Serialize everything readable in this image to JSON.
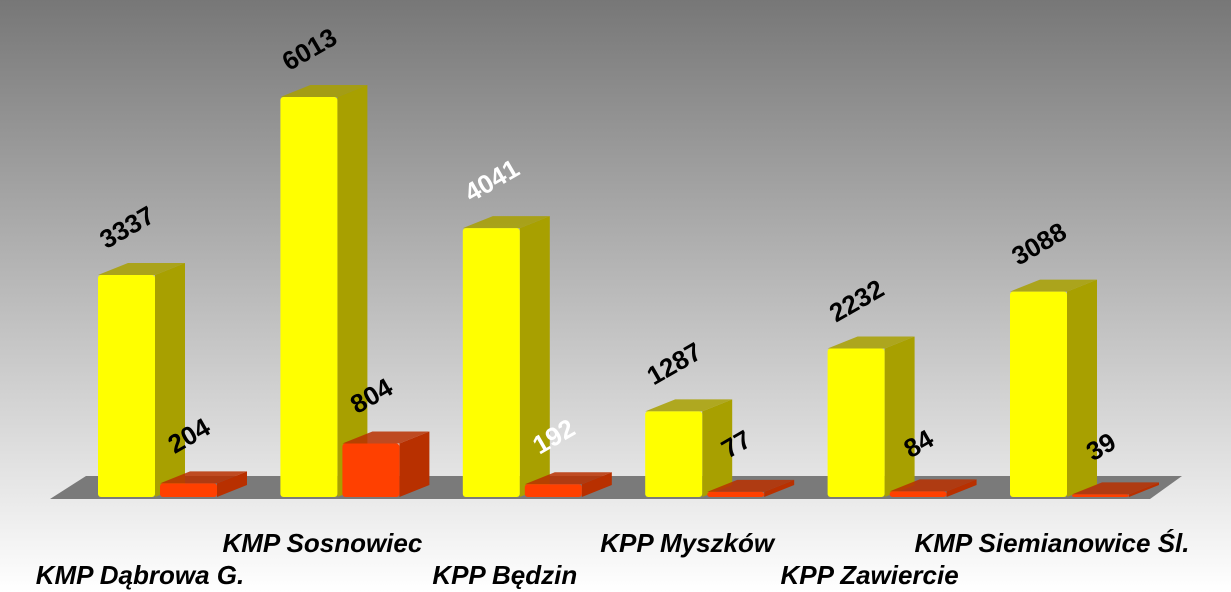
{
  "chart_data": {
    "type": "bar3d",
    "categories": [
      "KMP Dąbrowa G.",
      "KMP Sosnowiec",
      "KPP Będzin",
      "KPP Myszków",
      "KPP Zawiercie",
      "KMP Siemianowice Śl."
    ],
    "series": [
      {
        "color": "#ffff00",
        "side_color": "#a8a000",
        "values": [
          3337,
          6013,
          4041,
          1287,
          2232,
          3088
        ],
        "value_label_colors": [
          "#000000",
          "#000000",
          "#ffffff",
          "#000000",
          "#000000",
          "#000000"
        ]
      },
      {
        "color": "#ff4000",
        "side_color": "#b83000",
        "values": [
          204,
          804,
          192,
          77,
          84,
          39
        ],
        "value_label_colors": [
          "#000000",
          "#000000",
          "#ffffff",
          "#000000",
          "#000000",
          "#000000"
        ]
      }
    ]
  }
}
